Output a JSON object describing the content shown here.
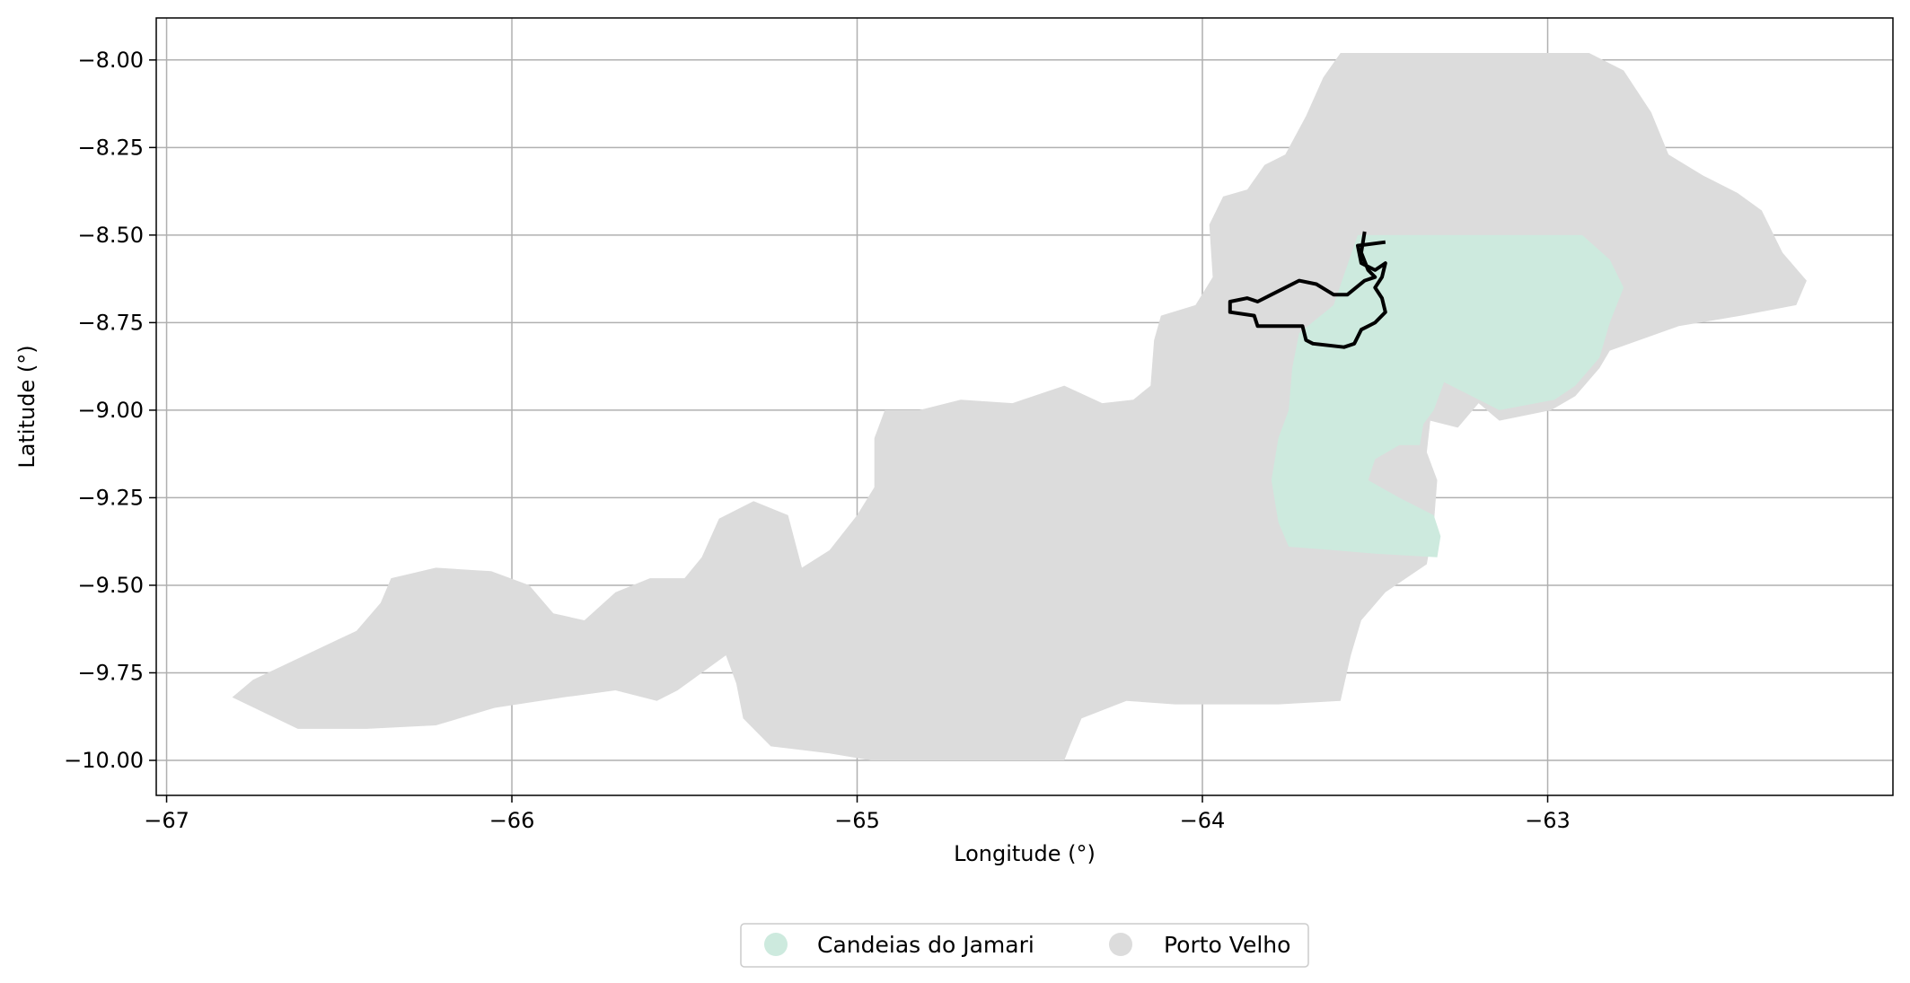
{
  "chart_data": {
    "type": "map",
    "xlabel": "Longitude (°)",
    "ylabel": "Latitude (°)",
    "xlim": [
      -67.03,
      -62.0
    ],
    "ylim": [
      -10.1,
      -7.88
    ],
    "grid": true,
    "x_ticks": [
      -67,
      -66,
      -65,
      -64,
      -63
    ],
    "x_tick_labels": [
      "−67",
      "−66",
      "−65",
      "−64",
      "−63"
    ],
    "y_ticks": [
      -8.0,
      -8.25,
      -8.5,
      -8.75,
      -9.0,
      -9.25,
      -9.5,
      -9.75,
      -10.0
    ],
    "y_tick_labels": [
      "−8.00",
      "−8.25",
      "−8.50",
      "−8.75",
      "−9.00",
      "−9.25",
      "−9.50",
      "−9.75",
      "−10.00"
    ],
    "legend_position": "bottom-center",
    "series": [
      {
        "name": "Porto Velho",
        "color": "#dcdcdc",
        "polygon": [
          [
            -63.6,
            -7.98
          ],
          [
            -62.88,
            -7.98
          ],
          [
            -62.78,
            -8.03
          ],
          [
            -62.7,
            -8.15
          ],
          [
            -62.65,
            -8.27
          ],
          [
            -62.55,
            -8.33
          ],
          [
            -62.45,
            -8.38
          ],
          [
            -62.38,
            -8.43
          ],
          [
            -62.32,
            -8.55
          ],
          [
            -62.25,
            -8.63
          ],
          [
            -62.28,
            -8.7
          ],
          [
            -62.44,
            -8.73
          ],
          [
            -62.62,
            -8.76
          ],
          [
            -62.82,
            -8.83
          ],
          [
            -62.85,
            -8.88
          ],
          [
            -62.92,
            -8.96
          ],
          [
            -62.99,
            -9.0
          ],
          [
            -63.14,
            -9.03
          ],
          [
            -63.2,
            -8.98
          ],
          [
            -63.26,
            -9.05
          ],
          [
            -63.34,
            -9.03
          ],
          [
            -63.35,
            -9.12
          ],
          [
            -63.32,
            -9.2
          ],
          [
            -63.33,
            -9.33
          ],
          [
            -63.35,
            -9.44
          ],
          [
            -63.47,
            -9.52
          ],
          [
            -63.54,
            -9.6
          ],
          [
            -63.57,
            -9.7
          ],
          [
            -63.6,
            -9.83
          ],
          [
            -63.78,
            -9.84
          ],
          [
            -64.08,
            -9.84
          ],
          [
            -64.22,
            -9.83
          ],
          [
            -64.35,
            -9.88
          ],
          [
            -64.38,
            -9.95
          ],
          [
            -64.4,
            -10.0
          ],
          [
            -64.96,
            -10.0
          ],
          [
            -65.08,
            -9.98
          ],
          [
            -65.25,
            -9.96
          ],
          [
            -65.33,
            -9.88
          ],
          [
            -65.35,
            -9.78
          ],
          [
            -65.38,
            -9.7
          ],
          [
            -65.52,
            -9.8
          ],
          [
            -65.58,
            -9.83
          ],
          [
            -65.7,
            -9.8
          ],
          [
            -65.85,
            -9.82
          ],
          [
            -66.05,
            -9.85
          ],
          [
            -66.22,
            -9.9
          ],
          [
            -66.42,
            -9.91
          ],
          [
            -66.62,
            -9.91
          ],
          [
            -66.81,
            -9.82
          ],
          [
            -66.75,
            -9.77
          ],
          [
            -66.6,
            -9.7
          ],
          [
            -66.45,
            -9.63
          ],
          [
            -66.38,
            -9.55
          ],
          [
            -66.35,
            -9.48
          ],
          [
            -66.22,
            -9.45
          ],
          [
            -66.06,
            -9.46
          ],
          [
            -65.95,
            -9.5
          ],
          [
            -65.88,
            -9.58
          ],
          [
            -65.79,
            -9.6
          ],
          [
            -65.7,
            -9.52
          ],
          [
            -65.6,
            -9.48
          ],
          [
            -65.5,
            -9.48
          ],
          [
            -65.45,
            -9.42
          ],
          [
            -65.4,
            -9.31
          ],
          [
            -65.3,
            -9.26
          ],
          [
            -65.2,
            -9.3
          ],
          [
            -65.16,
            -9.45
          ],
          [
            -65.08,
            -9.4
          ],
          [
            -65.0,
            -9.3
          ],
          [
            -64.95,
            -9.22
          ],
          [
            -64.95,
            -9.08
          ],
          [
            -64.92,
            -9.0
          ],
          [
            -64.82,
            -9.0
          ],
          [
            -64.7,
            -8.97
          ],
          [
            -64.55,
            -8.98
          ],
          [
            -64.4,
            -8.93
          ],
          [
            -64.29,
            -8.98
          ],
          [
            -64.2,
            -8.97
          ],
          [
            -64.15,
            -8.93
          ],
          [
            -64.14,
            -8.8
          ],
          [
            -64.12,
            -8.73
          ],
          [
            -64.02,
            -8.7
          ],
          [
            -63.97,
            -8.62
          ],
          [
            -63.98,
            -8.47
          ],
          [
            -63.94,
            -8.39
          ],
          [
            -63.87,
            -8.37
          ],
          [
            -63.82,
            -8.3
          ],
          [
            -63.76,
            -8.27
          ],
          [
            -63.7,
            -8.16
          ],
          [
            -63.65,
            -8.05
          ],
          [
            -63.6,
            -7.98
          ]
        ]
      },
      {
        "name": "Candeias do Jamari",
        "color": "#cdeade",
        "polygon": [
          [
            -63.55,
            -8.5
          ],
          [
            -62.9,
            -8.5
          ],
          [
            -62.82,
            -8.57
          ],
          [
            -62.78,
            -8.65
          ],
          [
            -62.82,
            -8.75
          ],
          [
            -62.85,
            -8.85
          ],
          [
            -62.92,
            -8.93
          ],
          [
            -62.98,
            -8.97
          ],
          [
            -63.14,
            -9.0
          ],
          [
            -63.22,
            -8.96
          ],
          [
            -63.3,
            -8.92
          ],
          [
            -63.33,
            -9.0
          ],
          [
            -63.36,
            -9.04
          ],
          [
            -63.37,
            -9.1
          ],
          [
            -63.43,
            -9.1
          ],
          [
            -63.5,
            -9.14
          ],
          [
            -63.52,
            -9.2
          ],
          [
            -63.43,
            -9.25
          ],
          [
            -63.33,
            -9.3
          ],
          [
            -63.31,
            -9.36
          ],
          [
            -63.32,
            -9.42
          ],
          [
            -63.5,
            -9.41
          ],
          [
            -63.62,
            -9.4
          ],
          [
            -63.75,
            -9.39
          ],
          [
            -63.78,
            -9.32
          ],
          [
            -63.8,
            -9.2
          ],
          [
            -63.78,
            -9.08
          ],
          [
            -63.75,
            -9.0
          ],
          [
            -63.74,
            -8.88
          ],
          [
            -63.72,
            -8.78
          ],
          [
            -63.62,
            -8.7
          ],
          [
            -63.55,
            -8.5
          ]
        ]
      }
    ],
    "outline": {
      "color": "#000000",
      "polyline": [
        [
          -63.47,
          -8.52
        ],
        [
          -63.55,
          -8.53
        ],
        [
          -63.54,
          -8.58
        ],
        [
          -63.5,
          -8.6
        ],
        [
          -63.47,
          -8.58
        ],
        [
          -63.48,
          -8.62
        ],
        [
          -63.5,
          -8.65
        ],
        [
          -63.48,
          -8.68
        ],
        [
          -63.47,
          -8.72
        ],
        [
          -63.5,
          -8.75
        ],
        [
          -63.54,
          -8.77
        ],
        [
          -63.56,
          -8.81
        ],
        [
          -63.59,
          -8.82
        ],
        [
          -63.68,
          -8.81
        ],
        [
          -63.7,
          -8.8
        ],
        [
          -63.71,
          -8.76
        ],
        [
          -63.84,
          -8.76
        ],
        [
          -63.85,
          -8.73
        ],
        [
          -63.92,
          -8.72
        ],
        [
          -63.92,
          -8.69
        ],
        [
          -63.87,
          -8.68
        ],
        [
          -63.84,
          -8.69
        ],
        [
          -63.8,
          -8.67
        ],
        [
          -63.72,
          -8.63
        ],
        [
          -63.67,
          -8.64
        ],
        [
          -63.62,
          -8.67
        ],
        [
          -63.58,
          -8.67
        ],
        [
          -63.53,
          -8.63
        ],
        [
          -63.5,
          -8.62
        ],
        [
          -63.52,
          -8.6
        ],
        [
          -63.54,
          -8.55
        ],
        [
          -63.53,
          -8.49
        ]
      ]
    },
    "legend": [
      "Candeias do Jamari",
      "Porto Velho"
    ]
  }
}
